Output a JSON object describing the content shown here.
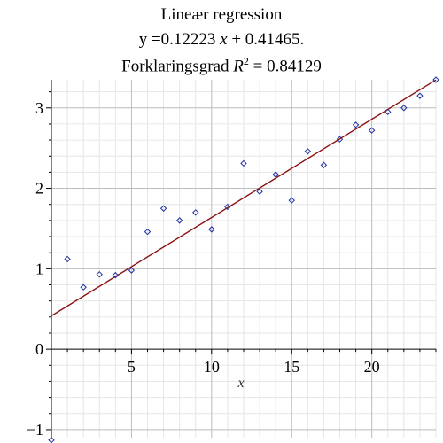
{
  "chart_data": {
    "type": "scatter",
    "title": "Lineær regression",
    "subtitle": "y =0.12223 x + 0.41465.",
    "annotation": "Forklaringsgrad R^2 = 0.84129",
    "title_parts": {
      "line2_pre": "y =0.12223",
      "line2_var": "x",
      "line2_post": "+ 0.41465.",
      "line3_pre": "Forklaringsgrad",
      "line3_var": "R",
      "line3_exp": "2",
      "line3_post": "= 0.84129"
    },
    "xlabel": "x",
    "ylabel": "",
    "xlim": [
      0,
      24
    ],
    "ylim": [
      -1.1,
      3.35
    ],
    "xticks": [
      5,
      10,
      15,
      20
    ],
    "xtick_labels": [
      "5",
      "10",
      "15",
      "20"
    ],
    "yticks": [
      -1,
      0,
      1,
      2,
      3
    ],
    "ytick_labels": [
      "−1",
      "0",
      "1",
      "2",
      "3"
    ],
    "grid": true,
    "point_color": "#1f2fa0",
    "line_color": "#8b1010",
    "regression": {
      "slope": 0.12223,
      "intercept": 0.41465
    },
    "x": [
      0,
      1,
      2,
      3,
      4,
      5,
      6,
      7,
      8,
      9,
      10,
      11,
      12,
      13,
      14,
      15,
      16,
      17,
      18,
      19,
      20,
      21,
      22,
      23,
      24
    ],
    "y": [
      -1.13,
      1.12,
      0.77,
      0.93,
      0.92,
      0.98,
      1.46,
      1.75,
      1.6,
      1.7,
      1.49,
      1.77,
      2.31,
      1.96,
      2.17,
      1.85,
      2.46,
      2.29,
      2.61,
      2.79,
      2.72,
      2.95,
      3.0,
      3.15,
      3.35
    ]
  }
}
